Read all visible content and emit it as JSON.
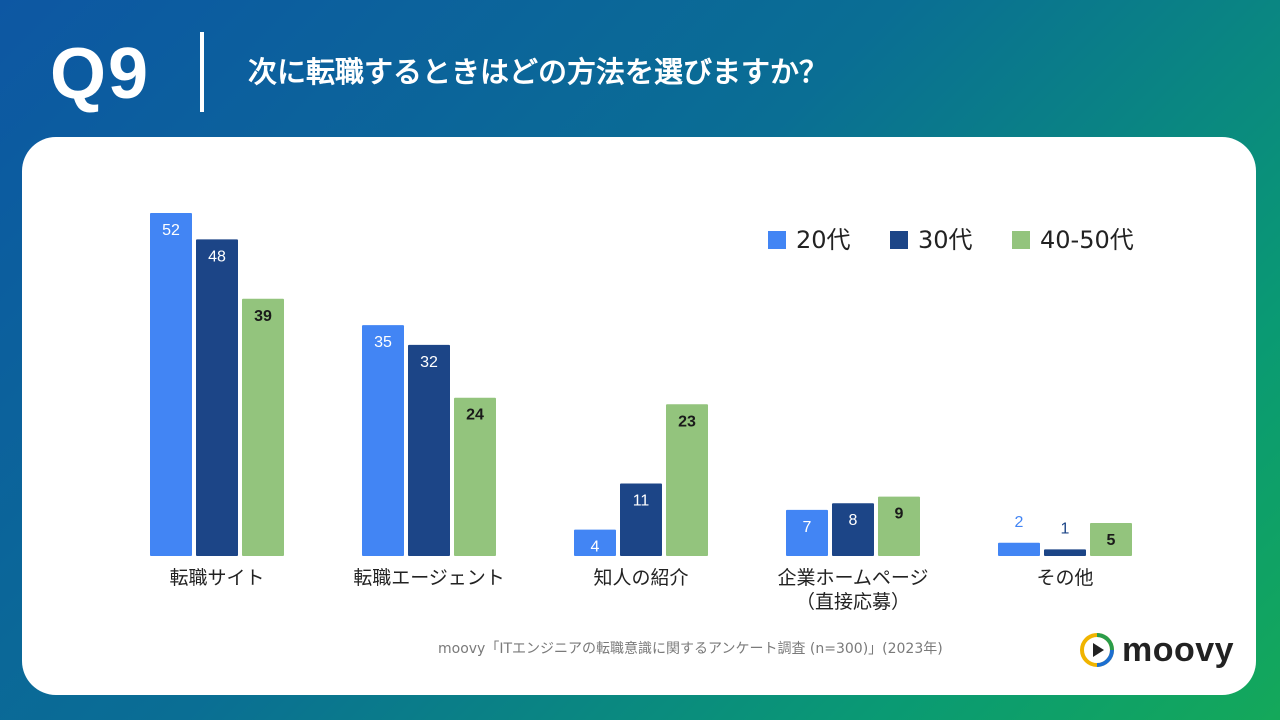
{
  "header": {
    "question_number": "Q9",
    "question_text": "次に転職するときはどの方法を選びますか？"
  },
  "footer": {
    "source": "moovy「ITエンジニアの転職意識に関するアンケート調査 (n=300)」(2023年)",
    "brand": "moovy"
  },
  "colors": {
    "series_20": "#4285f4",
    "series_30": "#1c4587",
    "series_4050": "#93c47d"
  },
  "chart_data": {
    "type": "bar",
    "title": "",
    "xlabel": "",
    "ylabel": "",
    "ylim": [
      0,
      55
    ],
    "grid": false,
    "legend_position": "top-right",
    "categories": [
      [
        "転職サイト"
      ],
      [
        "転職エージェント"
      ],
      [
        "知人の紹介"
      ],
      [
        "企業ホームページ",
        "（直接応募）"
      ],
      [
        "その他"
      ]
    ],
    "series": [
      {
        "name": "20代",
        "values": [
          52,
          35,
          4,
          7,
          2
        ]
      },
      {
        "name": "30代",
        "values": [
          48,
          32,
          11,
          8,
          1
        ]
      },
      {
        "name": "40-50代",
        "values": [
          39,
          24,
          23,
          9,
          5
        ]
      }
    ]
  }
}
